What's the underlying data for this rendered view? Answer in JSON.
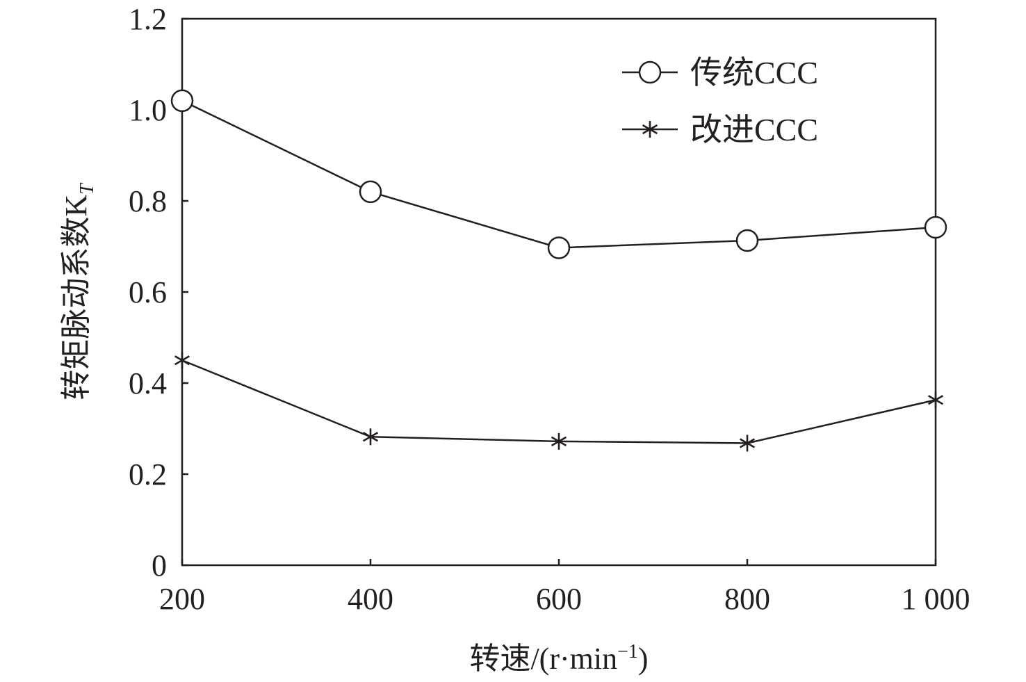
{
  "chart_data": {
    "type": "line",
    "x": [
      200,
      400,
      600,
      800,
      1000
    ],
    "x_tick_labels": [
      "200",
      "400",
      "600",
      "800",
      "1 000"
    ],
    "y_tick_labels": [
      "0",
      "0.2",
      "0.4",
      "0.6",
      "0.8",
      "1.0",
      "1.2"
    ],
    "xlim": [
      200,
      1000
    ],
    "ylim": [
      0,
      1.2
    ],
    "xlabel": "转速/(r·min",
    "xlabel_sup": "−1",
    "xlabel_end": ")",
    "ylabel": "转矩脉动系数K",
    "ylabel_sub": "T",
    "grid": false,
    "legend_position": "top-right",
    "series": [
      {
        "name": "传统CCC",
        "marker": "circle",
        "values": [
          1.02,
          0.82,
          0.697,
          0.713,
          0.742
        ]
      },
      {
        "name": "改进CCC",
        "marker": "asterisk",
        "values": [
          0.45,
          0.282,
          0.272,
          0.268,
          0.363
        ]
      }
    ],
    "colors": {
      "line": "#231f20"
    }
  }
}
